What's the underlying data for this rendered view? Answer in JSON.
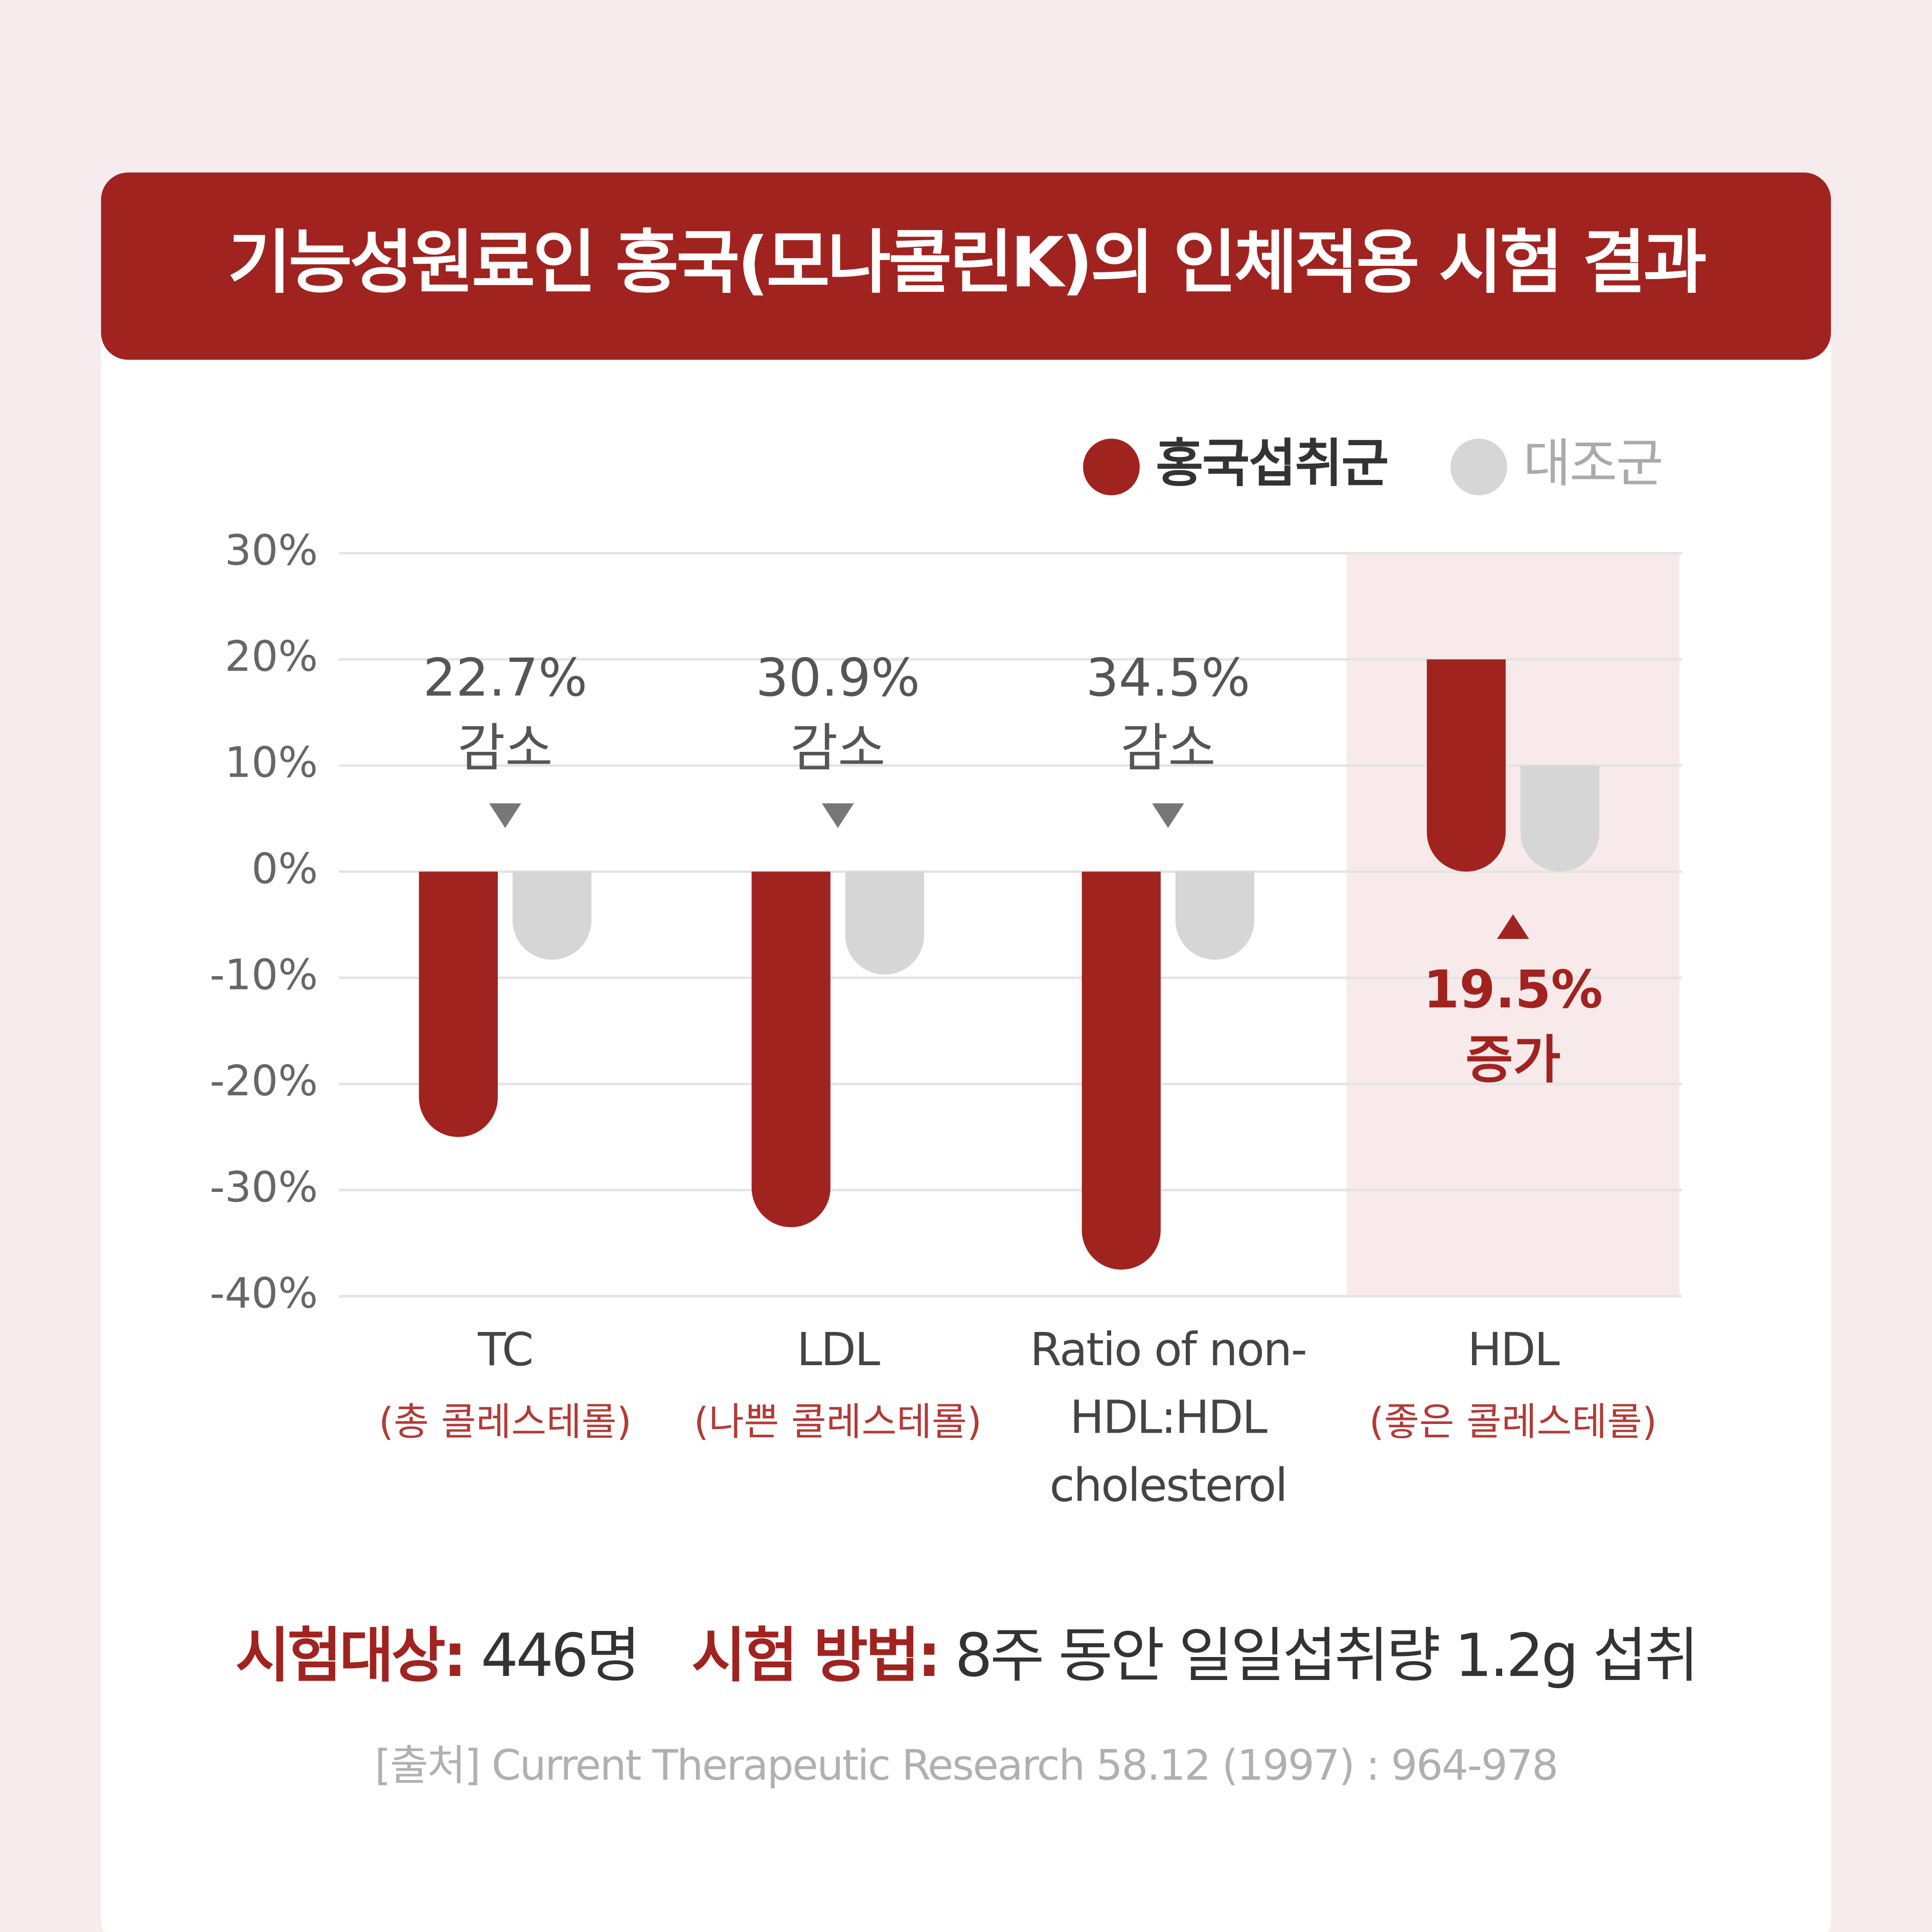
{
  "chart_data": {
    "type": "bar",
    "title": "기능성원료인 홍국(모나콜린K)의 인체적용 시험 결과",
    "categories": [
      "TC",
      "LDL",
      "Ratio of non-HDL:HDL cholesterol",
      "HDL"
    ],
    "sublabels": [
      "(총 콜레스테롤)",
      "(나쁜 콜레스테롤)",
      null,
      "(좋은 콜레스테롤)"
    ],
    "series": [
      {
        "name": "홍국섭취군",
        "color": "#a0231f",
        "values": [
          -25,
          -33.5,
          -37.5,
          20
        ]
      },
      {
        "name": "대조군",
        "color": "#d6d6d6",
        "values": [
          -8.3,
          -9.7,
          -8.3,
          10
        ]
      }
    ],
    "annotations": [
      {
        "text": "22.7%",
        "note": "감소"
      },
      {
        "text": "30.9%",
        "note": "감소"
      },
      {
        "text": "34.5%",
        "note": "감소"
      },
      {
        "text": "19.5%",
        "note": "증가"
      }
    ],
    "ylim": [
      -40,
      30
    ],
    "yticks": [
      {
        "value": -40,
        "label": "-40%"
      },
      {
        "value": -30,
        "label": "-30%"
      },
      {
        "value": -20,
        "label": "-20%"
      },
      {
        "value": -10,
        "label": "-10%"
      },
      {
        "value": 0,
        "label": "0%"
      },
      {
        "value": 10,
        "label": "10%"
      },
      {
        "value": 20,
        "label": "20%"
      },
      {
        "value": 30,
        "label": "30%"
      }
    ],
    "grid": true,
    "legend": "top-right"
  },
  "footer": {
    "subject_label": "시험대상:",
    "subject": "446명",
    "method_label": "시험 방법:",
    "method": "8주 동안 일일섭취량 1.2g 섭취",
    "source": "[출처] Current Therapeutic Research 58.12 (1997) : 964-978"
  }
}
